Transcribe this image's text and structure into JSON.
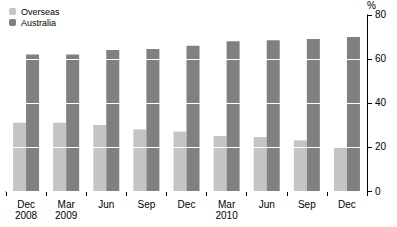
{
  "chart_data": {
    "type": "bar",
    "ylabel": "%",
    "categories": [
      "Dec\n2008",
      "Mar\n2009",
      "Jun",
      "Sep",
      "Dec",
      "Mar\n2010",
      "Jun",
      "Sep",
      "Dec"
    ],
    "series": [
      {
        "name": "Overseas",
        "color": "#c4c4c4",
        "values": [
          31,
          31,
          30,
          28,
          27,
          25,
          24.5,
          23,
          20
        ]
      },
      {
        "name": "Australia",
        "color": "#808080",
        "values": [
          62,
          62,
          64,
          64.5,
          66,
          68,
          68.5,
          69,
          70
        ]
      }
    ],
    "ylim": [
      0,
      80
    ],
    "yticks": [
      0,
      20,
      40,
      60,
      80
    ],
    "grid": true,
    "legend": "top-left"
  }
}
